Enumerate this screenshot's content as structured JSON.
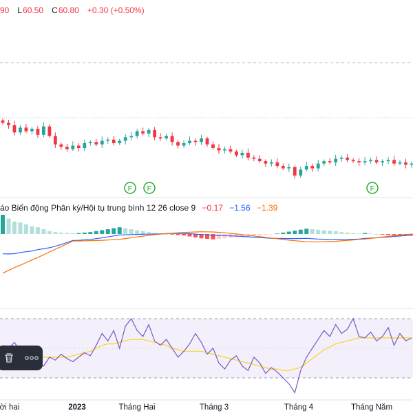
{
  "legend": {
    "partial_high": "90",
    "low_label": "L",
    "low_value": "60.50",
    "close_label": "C",
    "close_value": "60.80",
    "change": "+0.30 (+0.50%)"
  },
  "macd_legend": {
    "title": "áo Biến động Phân kỳ/Hội tụ trung bình 12 26 close 9",
    "histogram_value": "−0.17",
    "macd_value": "−1.56",
    "signal_value": "−1.39"
  },
  "event_markers": [
    {
      "label": "F"
    },
    {
      "label": "F"
    },
    {
      "label": "F"
    }
  ],
  "toolbar": {
    "delete_icon": "trash-icon",
    "more_icon": "more-horizontal-icon"
  },
  "time_axis": {
    "labels": [
      "ời hai",
      "2023",
      "Tháng Hai",
      "Tháng 3",
      "Tháng 4",
      "Tháng Năm"
    ]
  },
  "colors": {
    "up": "#26a69a",
    "down": "#f23645",
    "macd_line": "#2962ff",
    "signal_line": "#ff6d00",
    "rsi_line": "#7e57c2",
    "rsi_ma": "#f7d51e",
    "rsi_band": "#f3f0fb",
    "marker_green": "#22ab30",
    "toolbar_bg": "#2a2e39"
  },
  "chart_data": {
    "type": "candlestick",
    "candles_close": [
      62.0,
      61.8,
      61.2,
      61.6,
      61.3,
      61.5,
      61.0,
      61.7,
      60.9,
      60.2,
      60.0,
      59.8,
      60.1,
      59.9,
      60.3,
      60.4,
      60.2,
      60.5,
      60.6,
      60.3,
      60.5,
      60.8,
      60.9,
      61.3,
      61.1,
      61.4,
      60.8,
      60.7,
      60.9,
      60.4,
      60.1,
      60.3,
      60.5,
      60.4,
      60.7,
      60.2,
      59.9,
      59.7,
      59.8,
      59.6,
      59.3,
      59.5,
      59.1,
      59.0,
      58.8,
      58.6,
      58.7,
      58.4,
      58.2,
      58.3,
      57.6,
      58.1,
      58.4,
      58.2,
      58.6,
      58.8,
      58.7,
      59.0,
      59.1,
      58.9,
      58.8,
      58.7,
      58.8,
      58.9,
      58.7,
      58.8,
      58.9,
      58.6,
      58.7,
      58.5,
      58.6
    ],
    "macd": {
      "histogram": [
        2.0,
        1.6,
        1.3,
        1.2,
        1.0,
        0.8,
        0.7,
        0.5,
        0.3,
        0.2,
        0.15,
        0.12,
        0.1,
        0.1,
        0.15,
        0.2,
        0.3,
        0.4,
        0.5,
        0.6,
        0.7,
        0.6,
        0.5,
        0.4,
        0.3,
        0.2,
        0.1,
        0.05,
        0.0,
        -0.05,
        -0.1,
        -0.15,
        -0.25,
        -0.35,
        -0.45,
        -0.5,
        -0.55,
        -0.5,
        -0.45,
        -0.4,
        -0.35,
        -0.3,
        -0.25,
        -0.2,
        -0.15,
        -0.1,
        -0.05,
        0.05,
        0.15,
        0.25,
        0.35,
        0.45,
        0.55,
        0.5,
        0.45,
        0.4,
        0.35,
        0.3,
        0.2,
        0.15,
        0.1,
        0.05,
        0.1,
        0.05,
        0.0,
        -0.05,
        -0.1,
        -0.12,
        -0.15,
        -0.17,
        -0.17
      ],
      "macd_line": -1.56,
      "signal_line": -1.39
    },
    "rsi": {
      "band_upper": 70,
      "band_lower": 30,
      "values": [
        52,
        50,
        54,
        48,
        45,
        47,
        40,
        38,
        44,
        42,
        46,
        43,
        41,
        44,
        47,
        45,
        52,
        60,
        55,
        62,
        50,
        65,
        70,
        62,
        58,
        66,
        55,
        52,
        56,
        50,
        44,
        48,
        53,
        60,
        54,
        46,
        50,
        40,
        36,
        42,
        45,
        38,
        35,
        44,
        40,
        33,
        37,
        34,
        30,
        26,
        20,
        35,
        44,
        50,
        56,
        62,
        58,
        66,
        60,
        63,
        70,
        58,
        57,
        61,
        55,
        58,
        64,
        52,
        60,
        55,
        57
      ],
      "ma": [
        48,
        48,
        47,
        46,
        46,
        45,
        44,
        44,
        44,
        44,
        44,
        44,
        45,
        46,
        47,
        48,
        50,
        52,
        53,
        53,
        54,
        55,
        56,
        56,
        56,
        55,
        54,
        53,
        52,
        50,
        49,
        48,
        48,
        48,
        48,
        47,
        46,
        45,
        44,
        43,
        42,
        41,
        40,
        39,
        38,
        37,
        36,
        36,
        35,
        35,
        36,
        37,
        40,
        43,
        46,
        49,
        51,
        53,
        54,
        55,
        56,
        57,
        57,
        57,
        57,
        57,
        57,
        57,
        57,
        57,
        57
      ]
    }
  }
}
